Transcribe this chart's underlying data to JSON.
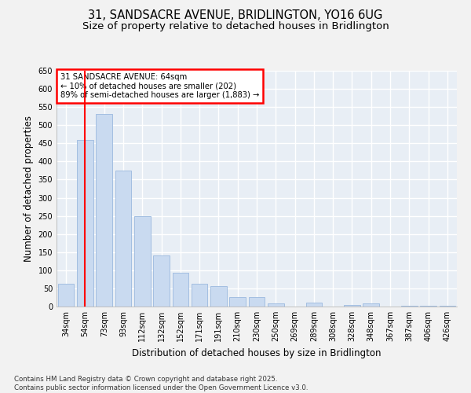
{
  "title": "31, SANDSACRE AVENUE, BRIDLINGTON, YO16 6UG",
  "subtitle": "Size of property relative to detached houses in Bridlington",
  "xlabel": "Distribution of detached houses by size in Bridlington",
  "ylabel": "Number of detached properties",
  "categories": [
    "34sqm",
    "54sqm",
    "73sqm",
    "93sqm",
    "112sqm",
    "132sqm",
    "152sqm",
    "171sqm",
    "191sqm",
    "210sqm",
    "230sqm",
    "250sqm",
    "269sqm",
    "289sqm",
    "308sqm",
    "328sqm",
    "348sqm",
    "367sqm",
    "387sqm",
    "406sqm",
    "426sqm"
  ],
  "values": [
    62,
    460,
    530,
    375,
    250,
    140,
    93,
    62,
    57,
    26,
    26,
    8,
    0,
    10,
    0,
    5,
    8,
    0,
    3,
    3,
    2
  ],
  "bar_color": "#c9daf0",
  "bar_edge_color": "#9ab8de",
  "vline_x": 1.0,
  "vline_color": "red",
  "annotation_title": "31 SANDSACRE AVENUE: 64sqm",
  "annotation_line1": "← 10% of detached houses are smaller (202)",
  "annotation_line2": "89% of semi-detached houses are larger (1,883) →",
  "annotation_box_color": "red",
  "ylim": [
    0,
    650
  ],
  "yticks": [
    0,
    50,
    100,
    150,
    200,
    250,
    300,
    350,
    400,
    450,
    500,
    550,
    600,
    650
  ],
  "plot_bg_color": "#e8eef5",
  "grid_color": "#ffffff",
  "fig_bg_color": "#f2f2f2",
  "footer1": "Contains HM Land Registry data © Crown copyright and database right 2025.",
  "footer2": "Contains public sector information licensed under the Open Government Licence v3.0.",
  "title_fontsize": 10.5,
  "subtitle_fontsize": 9.5,
  "tick_fontsize": 7,
  "ylabel_fontsize": 8.5,
  "xlabel_fontsize": 8.5,
  "footer_fontsize": 6.2
}
